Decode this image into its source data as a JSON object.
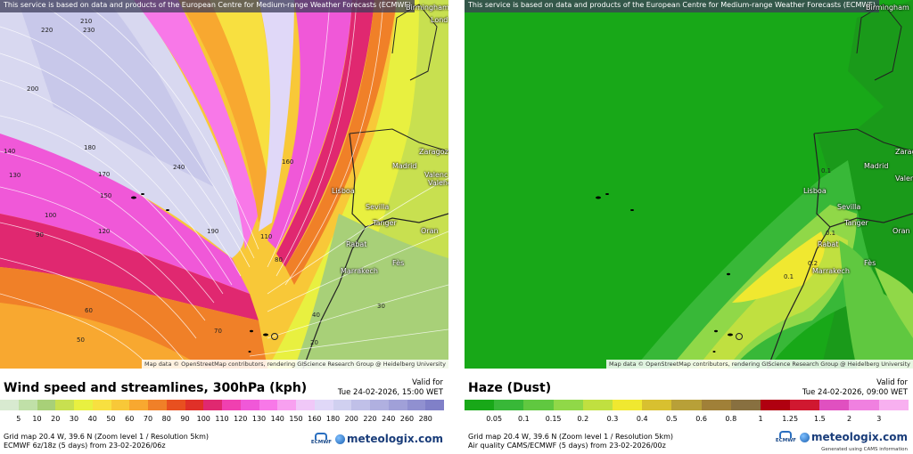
{
  "left": {
    "disclaimer": "This service is based on data and products of the European Centre for Medium-range Weather Forecasts (ECMWF)",
    "attribution": "Map data © OpenStreetMap contributors, rendering GIScience Research Group @ Heidelberg University",
    "title": "Wind speed and streamlines, 300hPa (kph)",
    "valid_label": "Valid for",
    "valid_time": "Tue 24-02-2026, 15:00 WET",
    "grid_line": "Grid map 20.4 W, 39.6 N (Zoom level 1 / Resolution 5km)",
    "model_line": "ECMWF 6z/18z (5 days) from 23-02-2026/06z",
    "legend_labels": [
      "5",
      "10",
      "20",
      "30",
      "40",
      "50",
      "60",
      "70",
      "80",
      "90",
      "100",
      "110",
      "120",
      "130",
      "140",
      "150",
      "160",
      "180",
      "200",
      "220",
      "240",
      "260",
      "280"
    ],
    "legend_colors": [
      "#d8ead0",
      "#c0e0a8",
      "#a8d078",
      "#c8e050",
      "#e8f040",
      "#f8e040",
      "#f8c838",
      "#f8a830",
      "#f08028",
      "#e85020",
      "#e03028",
      "#e02870",
      "#f040b0",
      "#f058d8",
      "#f878e8",
      "#f8a0f0",
      "#f0c8f8",
      "#e0d8f8",
      "#d0d0f0",
      "#c0c0e8",
      "#b0b0e0",
      "#a0a0d8",
      "#9090d0",
      "#8080c8"
    ],
    "cities": [
      {
        "name": "Birmingham"
      },
      {
        "name": "Lond"
      },
      {
        "name": "Madrid"
      },
      {
        "name": "Lisboa"
      },
      {
        "name": "Sevilla"
      },
      {
        "name": "Zaragoz"
      },
      {
        "name": "Valenc"
      },
      {
        "name": "Valenc"
      },
      {
        "name": "Oran"
      },
      {
        "name": "Rabat"
      },
      {
        "name": "Fès"
      },
      {
        "name": "Marrakech"
      },
      {
        "name": "Tanger"
      }
    ],
    "speed_labels": [
      "210",
      "230",
      "220",
      "200",
      "240",
      "180",
      "170",
      "150",
      "140",
      "130",
      "120",
      "110",
      "100",
      "90",
      "80",
      "70",
      "60",
      "50",
      "40",
      "30",
      "20",
      "160",
      "190"
    ]
  },
  "right": {
    "disclaimer": "This service is based on data and products of the European Centre for Medium-range Weather Forecasts (ECMWF)",
    "attribution": "Map data © OpenStreetMap contributors, rendering GIScience Research Group @ Heidelberg University",
    "title": "Haze (Dust)",
    "valid_label": "Valid for",
    "valid_time": "Tue 24-02-2026, 09:00 WET",
    "grid_line": "Grid map 20.4 W, 39.6 N (Zoom level 1 / Resolution 5km)",
    "model_line": "Air quality CAMS/ECMWF (5 days) from 23-02-2026/00z",
    "cams_note": "Generated using CAMS information",
    "legend_labels": [
      "0.05",
      "0.1",
      "0.15",
      "0.2",
      "0.3",
      "0.4",
      "0.5",
      "0.6",
      "0.8",
      "1",
      "1.25",
      "1.5",
      "2",
      "3"
    ],
    "legend_colors": [
      "#18a818",
      "#38b838",
      "#60c840",
      "#90d848",
      "#c0e040",
      "#f0e830",
      "#d8c030",
      "#b8a038",
      "#a08038",
      "#887040",
      "#b00010",
      "#d01830",
      "#e050c0",
      "#f080e0",
      "#f8b0f0"
    ],
    "cities": [
      {
        "name": "Birmingham"
      },
      {
        "name": "Madrid"
      },
      {
        "name": "Lisboa"
      },
      {
        "name": "Sevilla"
      },
      {
        "name": "Zaragoz"
      },
      {
        "name": "Valenc"
      },
      {
        "name": "Oran"
      },
      {
        "name": "Rabat"
      },
      {
        "name": "Fès"
      },
      {
        "name": "Marrakech"
      },
      {
        "name": "Tanger"
      }
    ],
    "value_labels": [
      "0.1",
      "0.2",
      "0.1",
      "0.1"
    ]
  },
  "brand": {
    "ecmwf": "ECMWF",
    "meteologix": "meteologix.com"
  }
}
